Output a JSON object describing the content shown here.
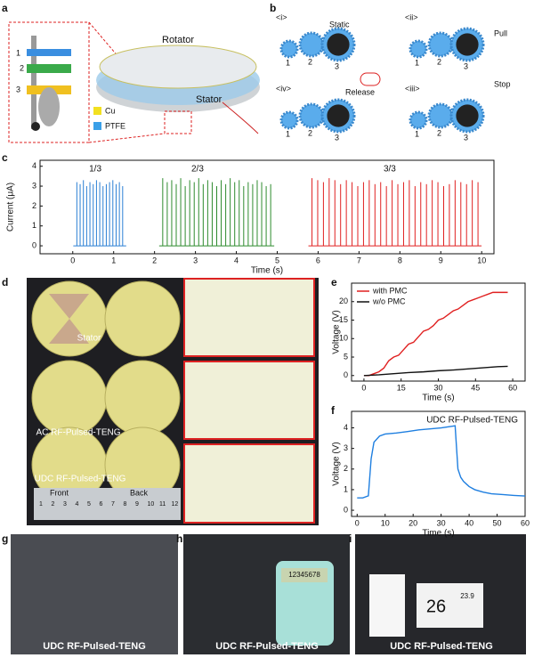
{
  "panel_labels": [
    "a",
    "b",
    "c",
    "d",
    "e",
    "f",
    "g",
    "h",
    "i"
  ],
  "a": {
    "parts": [
      "1",
      "2",
      "3"
    ],
    "rotator": "Rotator",
    "stator": "Stator",
    "legend": [
      "Cu",
      "PTFE"
    ]
  },
  "b": {
    "steps": [
      {
        "label": "<i>",
        "action": "Static",
        "gears": [
          "1",
          "2",
          "3"
        ]
      },
      {
        "label": "<ii>",
        "action": "Pull",
        "gears": [
          "1",
          "2",
          "3"
        ]
      },
      {
        "label": "<iv>",
        "action": "Release",
        "gears": [
          "1",
          "2",
          "3"
        ]
      },
      {
        "label": "<iii>",
        "action": "Stop",
        "gears": [
          "1",
          "2",
          "3"
        ]
      }
    ]
  },
  "d": {
    "labels": [
      "Stator",
      "AC RF-Pulsed-TENG",
      "UDC RF-Pulsed-TENG"
    ],
    "ruler": {
      "front": "Front",
      "back": "Back",
      "numbers": [
        "1",
        "2",
        "3",
        "4",
        "5",
        "6",
        "7",
        "8",
        "9",
        "10",
        "11",
        "12"
      ]
    }
  },
  "g": {
    "caption": "UDC RF-Pulsed-TENG"
  },
  "h": {
    "caption": "UDC RF-Pulsed-TENG",
    "display": "12345678"
  },
  "i": {
    "caption": "UDC RF-Pulsed-TENG",
    "display": [
      "26",
      "23.9"
    ]
  },
  "chart_data": [
    {
      "type": "spike",
      "xlabel": "Time (s)",
      "ylabel": "Current (μA)",
      "xlim": [
        -0.8,
        10.3
      ],
      "ylim": [
        -0.4,
        4.3
      ],
      "xticks": [
        0,
        1,
        2,
        3,
        4,
        5,
        6,
        7,
        8,
        9,
        10
      ],
      "yticks": [
        0,
        1,
        2,
        3,
        4
      ],
      "annotations": [
        "1/3",
        "2/3",
        "3/3"
      ],
      "series": [
        {
          "color": "#2a7fd4",
          "x": [
            0.1,
            0.18,
            0.26,
            0.34,
            0.42,
            0.5,
            0.58,
            0.66,
            0.74,
            0.82,
            0.9,
            0.98,
            1.06,
            1.14,
            1.22
          ],
          "values": [
            3.2,
            3.1,
            3.3,
            3.0,
            3.2,
            3.1,
            3.3,
            3.2,
            3.0,
            3.1,
            3.2,
            3.3,
            3.1,
            3.2,
            3.0
          ]
        },
        {
          "color": "#2e8b2e",
          "x": [
            2.2,
            2.31,
            2.42,
            2.53,
            2.64,
            2.75,
            2.86,
            2.97,
            3.08,
            3.19,
            3.3,
            3.41,
            3.52,
            3.63,
            3.74,
            3.85,
            3.96,
            4.07,
            4.18,
            4.29,
            4.4,
            4.51,
            4.62,
            4.73,
            4.84
          ],
          "values": [
            3.4,
            3.2,
            3.3,
            3.1,
            3.4,
            3.0,
            3.3,
            3.2,
            3.4,
            3.1,
            3.3,
            3.2,
            3.0,
            3.3,
            3.1,
            3.4,
            3.2,
            3.3,
            3.0,
            3.2,
            3.1,
            3.3,
            3.2,
            3.0,
            3.1
          ]
        },
        {
          "color": "#e02020",
          "x": [
            5.85,
            5.99,
            6.13,
            6.27,
            6.41,
            6.55,
            6.69,
            6.83,
            6.97,
            7.11,
            7.25,
            7.39,
            7.53,
            7.67,
            7.81,
            7.95,
            8.09,
            8.23,
            8.37,
            8.51,
            8.65,
            8.79,
            8.93,
            9.07,
            9.21,
            9.35,
            9.49,
            9.63,
            9.77,
            9.91
          ],
          "values": [
            3.4,
            3.3,
            3.2,
            3.4,
            3.3,
            3.1,
            3.3,
            3.2,
            3.0,
            3.2,
            3.3,
            3.1,
            3.2,
            3.0,
            3.3,
            3.1,
            3.2,
            3.3,
            3.0,
            3.2,
            3.1,
            3.3,
            3.2,
            3.0,
            3.1,
            3.3,
            3.2,
            3.1,
            3.3,
            3.2
          ]
        }
      ]
    },
    {
      "type": "line",
      "xlabel": "Time (s)",
      "ylabel": "Voltage (V)",
      "xlim": [
        -5,
        65
      ],
      "ylim": [
        -1.5,
        25
      ],
      "xticks": [
        0,
        15,
        30,
        45,
        60
      ],
      "yticks": [
        0,
        5,
        10,
        15,
        20
      ],
      "legend": "top-left",
      "series": [
        {
          "name": "with PMC",
          "color": "#e02020",
          "x": [
            0,
            2,
            4,
            6,
            8,
            10,
            12,
            14,
            16,
            18,
            20,
            22,
            24,
            26,
            28,
            30,
            32,
            34,
            36,
            38,
            40,
            42,
            44,
            46,
            48,
            50,
            52,
            54,
            56,
            58
          ],
          "values": [
            0,
            0,
            0.5,
            1,
            2,
            4,
            5,
            5.5,
            7,
            8.5,
            9,
            10.5,
            12,
            12.5,
            13.5,
            15,
            15.5,
            16.5,
            17.5,
            18,
            19,
            20,
            20.5,
            21,
            21.5,
            22,
            22.5,
            22.5,
            22.5,
            22.5
          ]
        },
        {
          "name": "w/o PMC",
          "color": "#111111",
          "x": [
            0,
            6,
            12,
            18,
            24,
            30,
            36,
            42,
            48,
            54,
            58
          ],
          "values": [
            0,
            0.2,
            0.5,
            0.8,
            1.0,
            1.3,
            1.5,
            1.8,
            2.1,
            2.4,
            2.5
          ]
        }
      ]
    },
    {
      "type": "line",
      "title": "UDC RF-Pulsed-TENG",
      "xlabel": "Time (s)",
      "ylabel": "Voltage (V)",
      "xlim": [
        -2,
        60
      ],
      "ylim": [
        -0.3,
        4.8
      ],
      "xticks": [
        0,
        10,
        20,
        30,
        40,
        50,
        60
      ],
      "yticks": [
        0,
        1,
        2,
        3,
        4
      ],
      "series": [
        {
          "color": "#1f7fe0",
          "x": [
            0,
            2,
            4,
            5,
            6,
            8,
            10,
            14,
            18,
            22,
            26,
            30,
            34,
            35,
            36,
            37,
            38,
            40,
            42,
            45,
            48,
            52,
            56,
            60
          ],
          "values": [
            0.6,
            0.6,
            0.7,
            2.5,
            3.3,
            3.6,
            3.7,
            3.75,
            3.82,
            3.9,
            3.95,
            4.0,
            4.08,
            4.1,
            2.0,
            1.6,
            1.4,
            1.15,
            1.0,
            0.88,
            0.8,
            0.76,
            0.72,
            0.69
          ]
        }
      ]
    }
  ]
}
